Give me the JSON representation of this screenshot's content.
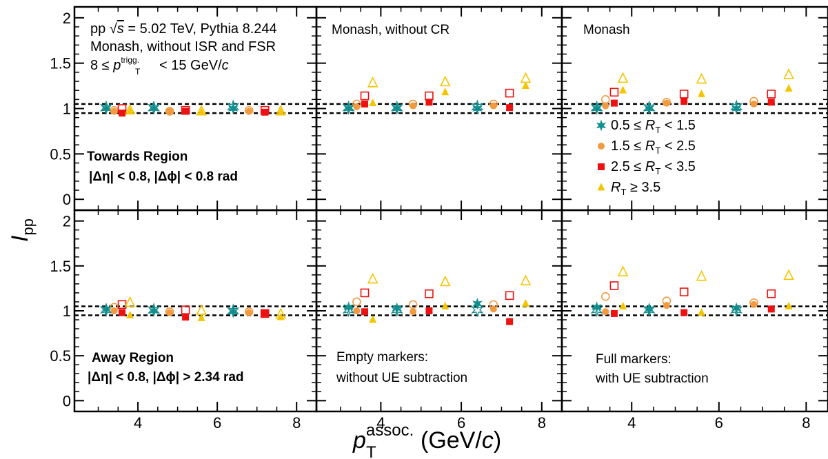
{
  "figure": {
    "y_axis_label": "I",
    "y_axis_label_sub": "pp",
    "x_axis_label": "p",
    "x_axis_label_sup": "assoc.",
    "x_axis_label_sub": "T",
    "x_axis_label_unit_pre": " (GeV/",
    "x_axis_label_unit_c": "c",
    "x_axis_label_unit_post": ")"
  },
  "colors": {
    "rt1": "#138e8e",
    "rt2": "#f29a3f",
    "rt3": "#ee1111",
    "rt4": "#f5c400",
    "frame": "#000000",
    "reference_lines": "#000000"
  },
  "annotations": {
    "pythia_line1_pre": "pp ",
    "pythia_line1_sqrt": "√",
    "pythia_line1_s": "s",
    "pythia_line1_post": " = 5.02 TeV, Pythia 8.244",
    "pythia_line2": "Monash, without ISR and FSR",
    "pythia_line3_pre": "8 ≤ ",
    "pythia_line3_p": "p",
    "pythia_line3_sup": "trigg.",
    "pythia_line3_sub": "T",
    "pythia_line3_post": " < 15 GeV/",
    "pythia_line3_c": "c",
    "towards_title": "Towards Region",
    "towards_cuts": "|Δη| < 0.8, |Δϕ| < 0.8 rad",
    "away_title": "Away Region",
    "away_cuts": "|Δη| < 0.8, |Δϕ| > 2.34 rad",
    "monash_nocr": "Monash, without CR",
    "monash": "Monash",
    "empty_markers_1": "Empty markers:",
    "empty_markers_2": "without UE subtraction",
    "full_markers_1": "Full markers:",
    "full_markers_2": "with UE subtraction"
  },
  "legend": {
    "placement": "top-right panel, lower half",
    "entries": [
      {
        "marker": "star",
        "color": "rt1",
        "pre": "0.5 ≤ ",
        "var": "R",
        "sub": "T",
        "post": " < 1.5"
      },
      {
        "marker": "circle",
        "color": "rt2",
        "pre": "1.5 ≤ ",
        "var": "R",
        "sub": "T",
        "post": " < 2.5"
      },
      {
        "marker": "square",
        "color": "rt3",
        "pre": "2.5 ≤ ",
        "var": "R",
        "sub": "T",
        "post": " < 3.5"
      },
      {
        "marker": "triangle",
        "color": "rt4",
        "pre": "",
        "var": "R",
        "sub": "T",
        "post": " ≥ 3.5"
      }
    ]
  },
  "chart_data": {
    "type": "scatter",
    "layout": "2 rows x 3 columns",
    "xlim": [
      2.4,
      8.5
    ],
    "ylim": [
      -0.12,
      2.12
    ],
    "xticks": [
      4,
      6,
      8
    ],
    "yticks_top_row": [
      0,
      0.5,
      1,
      1.5,
      2
    ],
    "yticks_bottom_row": [
      0,
      0.5,
      1,
      1.5,
      2
    ],
    "reference_lines_y": [
      0.95,
      1.05
    ],
    "grid": false,
    "series_names": [
      "0.5 ≤ RT < 1.5",
      "1.5 ≤ RT < 2.5",
      "2.5 ≤ RT < 3.5",
      "RT ≥ 3.5"
    ],
    "panels": [
      {
        "id": "towards-no-isr-fsr",
        "row": 0,
        "col": 0,
        "empty": [
          {
            "rt": 0,
            "x": [
              3.2,
              4.4,
              6.4
            ],
            "y": [
              1.01,
              1.01,
              1.02
            ]
          },
          {
            "rt": 1,
            "x": [
              3.4,
              4.8,
              6.8
            ],
            "y": [
              0.98,
              0.97,
              0.98
            ]
          },
          {
            "rt": 2,
            "x": [
              3.6,
              5.2,
              7.2
            ],
            "y": [
              1.0,
              0.98,
              0.98
            ]
          },
          {
            "rt": 3,
            "x": [
              3.8,
              5.6,
              7.6
            ],
            "y": [
              0.98,
              0.97,
              0.97
            ]
          }
        ],
        "full": [
          {
            "rt": 0,
            "x": [
              3.2,
              4.4,
              6.4
            ],
            "y": [
              1.0,
              1.0,
              1.0
            ]
          },
          {
            "rt": 1,
            "x": [
              3.4,
              4.8,
              6.8
            ],
            "y": [
              0.97,
              0.97,
              0.97
            ]
          },
          {
            "rt": 2,
            "x": [
              3.6,
              5.2,
              7.2
            ],
            "y": [
              0.95,
              0.97,
              0.96
            ]
          },
          {
            "rt": 3,
            "x": [
              3.8,
              5.6,
              7.6
            ],
            "y": [
              0.97,
              0.96,
              0.96
            ]
          }
        ]
      },
      {
        "id": "towards-monash-no-cr",
        "row": 0,
        "col": 1,
        "empty": [
          {
            "rt": 0,
            "x": [
              3.2,
              4.4,
              6.4
            ],
            "y": [
              1.01,
              1.01,
              1.02
            ]
          },
          {
            "rt": 1,
            "x": [
              3.4,
              4.8,
              6.8
            ],
            "y": [
              1.05,
              1.05,
              1.05
            ]
          },
          {
            "rt": 2,
            "x": [
              3.6,
              5.2,
              7.2
            ],
            "y": [
              1.14,
              1.14,
              1.17
            ]
          },
          {
            "rt": 3,
            "x": [
              3.8,
              5.6,
              7.6
            ],
            "y": [
              1.28,
              1.29,
              1.33
            ]
          }
        ],
        "full": [
          {
            "rt": 0,
            "x": [
              3.2,
              4.4,
              6.4
            ],
            "y": [
              1.0,
              1.0,
              1.0
            ]
          },
          {
            "rt": 1,
            "x": [
              3.4,
              4.8,
              6.8
            ],
            "y": [
              1.02,
              1.03,
              1.03
            ]
          },
          {
            "rt": 2,
            "x": [
              3.6,
              5.2,
              7.2
            ],
            "y": [
              1.05,
              1.07,
              1.01
            ]
          },
          {
            "rt": 3,
            "x": [
              3.8,
              5.6,
              7.6
            ],
            "y": [
              1.06,
              1.18,
              1.25
            ]
          }
        ]
      },
      {
        "id": "towards-monash",
        "row": 0,
        "col": 2,
        "empty": [
          {
            "rt": 0,
            "x": [
              3.2,
              4.4,
              6.4
            ],
            "y": [
              1.01,
              1.01,
              1.02
            ]
          },
          {
            "rt": 1,
            "x": [
              3.4,
              4.8,
              6.8
            ],
            "y": [
              1.1,
              1.07,
              1.08
            ]
          },
          {
            "rt": 2,
            "x": [
              3.6,
              5.2,
              7.2
            ],
            "y": [
              1.18,
              1.16,
              1.16
            ]
          },
          {
            "rt": 3,
            "x": [
              3.8,
              5.6,
              7.6
            ],
            "y": [
              1.33,
              1.32,
              1.37
            ]
          }
        ],
        "full": [
          {
            "rt": 0,
            "x": [
              3.2,
              4.4,
              6.4
            ],
            "y": [
              1.0,
              1.0,
              1.0
            ]
          },
          {
            "rt": 1,
            "x": [
              3.4,
              4.8,
              6.8
            ],
            "y": [
              1.03,
              1.06,
              1.05
            ]
          },
          {
            "rt": 2,
            "x": [
              3.6,
              5.2,
              7.2
            ],
            "y": [
              1.06,
              1.08,
              1.07
            ]
          },
          {
            "rt": 3,
            "x": [
              3.8,
              5.6,
              7.6
            ],
            "y": [
              1.2,
              1.16,
              1.22
            ]
          }
        ]
      },
      {
        "id": "away-no-isr-fsr",
        "row": 1,
        "col": 0,
        "empty": [
          {
            "rt": 0,
            "x": [
              3.2,
              4.4,
              6.4
            ],
            "y": [
              1.01,
              1.01,
              1.0
            ]
          },
          {
            "rt": 1,
            "x": [
              3.4,
              4.8,
              6.8
            ],
            "y": [
              1.04,
              0.99,
              0.99
            ]
          },
          {
            "rt": 2,
            "x": [
              3.6,
              5.2,
              7.2
            ],
            "y": [
              1.07,
              1.01,
              0.97
            ]
          },
          {
            "rt": 3,
            "x": [
              3.8,
              5.6,
              7.6
            ],
            "y": [
              1.09,
              1.0,
              0.96
            ]
          }
        ],
        "full": [
          {
            "rt": 0,
            "x": [
              3.2,
              4.4,
              6.4
            ],
            "y": [
              1.02,
              1.0,
              0.99
            ]
          },
          {
            "rt": 1,
            "x": [
              3.4,
              4.8,
              6.8
            ],
            "y": [
              1.0,
              0.98,
              0.98
            ]
          },
          {
            "rt": 2,
            "x": [
              3.6,
              5.2,
              7.2
            ],
            "y": [
              0.98,
              0.93,
              0.97
            ]
          },
          {
            "rt": 3,
            "x": [
              3.8,
              5.6,
              7.6
            ],
            "y": [
              0.95,
              0.92,
              0.93
            ]
          }
        ]
      },
      {
        "id": "away-monash-no-cr",
        "row": 1,
        "col": 1,
        "empty": [
          {
            "rt": 0,
            "x": [
              3.2,
              4.4,
              6.4
            ],
            "y": [
              1.01,
              1.01,
              1.01
            ]
          },
          {
            "rt": 1,
            "x": [
              3.4,
              4.8,
              6.8
            ],
            "y": [
              1.1,
              1.07,
              1.07
            ]
          },
          {
            "rt": 2,
            "x": [
              3.6,
              5.2,
              7.2
            ],
            "y": [
              1.2,
              1.19,
              1.17
            ]
          },
          {
            "rt": 3,
            "x": [
              3.8,
              5.6,
              7.6
            ],
            "y": [
              1.35,
              1.32,
              1.33
            ]
          }
        ],
        "full": [
          {
            "rt": 0,
            "x": [
              3.2,
              4.4,
              6.4
            ],
            "y": [
              1.04,
              1.03,
              1.08
            ]
          },
          {
            "rt": 1,
            "x": [
              3.4,
              4.8,
              6.8
            ],
            "y": [
              1.0,
              0.99,
              1.02
            ]
          },
          {
            "rt": 2,
            "x": [
              3.6,
              5.2,
              7.2
            ],
            "y": [
              0.99,
              1.0,
              0.88
            ]
          },
          {
            "rt": 3,
            "x": [
              3.8,
              5.6,
              7.6
            ],
            "y": [
              0.9,
              1.05,
              1.08
            ]
          }
        ]
      },
      {
        "id": "away-monash",
        "row": 1,
        "col": 2,
        "empty": [
          {
            "rt": 0,
            "x": [
              3.2,
              4.4,
              6.4
            ],
            "y": [
              1.01,
              1.01,
              1.01
            ]
          },
          {
            "rt": 1,
            "x": [
              3.4,
              4.8,
              6.8
            ],
            "y": [
              1.16,
              1.11,
              1.09
            ]
          },
          {
            "rt": 2,
            "x": [
              3.6,
              5.2,
              7.2
            ],
            "y": [
              1.28,
              1.21,
              1.19
            ]
          },
          {
            "rt": 3,
            "x": [
              3.8,
              5.6,
              7.6
            ],
            "y": [
              1.43,
              1.38,
              1.39
            ]
          }
        ],
        "full": [
          {
            "rt": 0,
            "x": [
              3.2,
              4.4,
              6.4
            ],
            "y": [
              1.04,
              1.02,
              1.03
            ]
          },
          {
            "rt": 1,
            "x": [
              3.4,
              4.8,
              6.8
            ],
            "y": [
              0.99,
              1.06,
              1.07
            ]
          },
          {
            "rt": 2,
            "x": [
              3.6,
              5.2,
              7.2
            ],
            "y": [
              0.97,
              0.98,
              1.02
            ]
          },
          {
            "rt": 3,
            "x": [
              3.8,
              5.6,
              7.6
            ],
            "y": [
              1.05,
              0.98,
              1.05
            ]
          }
        ]
      }
    ]
  }
}
